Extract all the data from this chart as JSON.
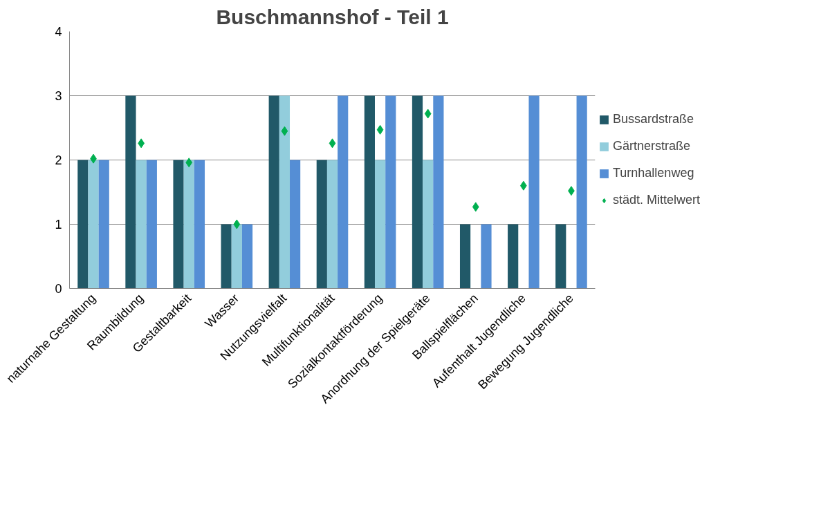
{
  "chart_data": {
    "type": "bar",
    "title": "Buschmannshof - Teil 1",
    "categories": [
      "naturnahe Gestaltung",
      "Raumbildung",
      "Gestaltbarkeit",
      "Wasser",
      "Nutzungsvielfalt",
      "Multifunktionalität",
      "Sozialkontaktförderung",
      "Anordnung der Spielgeräte",
      "Ballspielflächen",
      "Aufenthalt Jugendliche",
      "Bewegung Jugendliche"
    ],
    "series": [
      {
        "name": "Bussardstraße",
        "color": "#215968",
        "values": [
          2,
          3,
          2,
          1,
          3,
          2,
          3,
          3,
          1,
          1,
          1
        ]
      },
      {
        "name": "Gärtnerstraße",
        "color": "#92cddc",
        "values": [
          2,
          2,
          2,
          1,
          3,
          2,
          2,
          2,
          null,
          null,
          null
        ]
      },
      {
        "name": "Turnhallenweg",
        "color": "#558ed5",
        "values": [
          2,
          2,
          2,
          1,
          2,
          3,
          3,
          3,
          1,
          3,
          3
        ]
      },
      {
        "name": "städt. Mittelwert",
        "color": "#00b050",
        "type": "scatter",
        "marker": "diamond",
        "values": [
          2.02,
          2.26,
          1.96,
          1.0,
          2.45,
          2.26,
          2.47,
          2.72,
          1.27,
          1.6,
          1.52
        ]
      }
    ],
    "ylim": [
      0,
      4
    ],
    "yticks": [
      0,
      1,
      2,
      3,
      4
    ],
    "grid": "y",
    "legend": "right"
  }
}
